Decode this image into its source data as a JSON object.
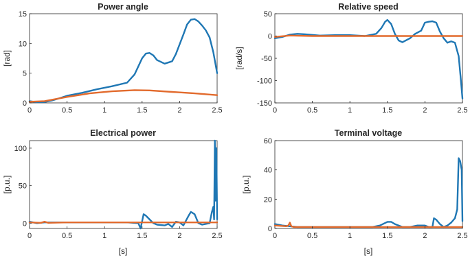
{
  "colors": {
    "series1": "#1f77b4",
    "series2": "#e26a2c",
    "axis": "#262626"
  },
  "chart_data": [
    {
      "type": "line",
      "title": "Power angle",
      "xlabel": "",
      "ylabel": "[rad]",
      "xlim": [
        0,
        2.5
      ],
      "ylim": [
        0,
        15
      ],
      "xticks": [
        0,
        0.5,
        1,
        1.5,
        2,
        2.5
      ],
      "xtick_labels": [
        "0",
        "0.5",
        "1",
        "1.5",
        "2",
        "2.5"
      ],
      "yticks": [
        0,
        5,
        10,
        15
      ],
      "ytick_labels": [
        "0",
        "5",
        "10",
        "15"
      ],
      "grid": false,
      "series": [
        {
          "color": "#1f77b4",
          "x": [
            0,
            0.1,
            0.2,
            0.3,
            0.4,
            0.5,
            0.7,
            0.9,
            1.1,
            1.3,
            1.4,
            1.5,
            1.55,
            1.6,
            1.65,
            1.7,
            1.8,
            1.9,
            1.95,
            2.05,
            2.1,
            2.15,
            2.2,
            2.25,
            2.3,
            2.35,
            2.4,
            2.45,
            2.5
          ],
          "y": [
            0.3,
            0.1,
            0.15,
            0.4,
            0.8,
            1.2,
            1.7,
            2.3,
            2.8,
            3.4,
            4.8,
            7.5,
            8.3,
            8.4,
            8.0,
            7.2,
            6.6,
            7.0,
            8.2,
            11.5,
            13.2,
            14.0,
            14.1,
            13.7,
            13.0,
            12.2,
            11.0,
            8.5,
            5.0
          ]
        },
        {
          "color": "#e26a2c",
          "x": [
            0,
            0.2,
            0.5,
            0.8,
            1.1,
            1.4,
            1.6,
            1.9,
            2.2,
            2.5
          ],
          "y": [
            0.2,
            0.3,
            1.0,
            1.6,
            1.95,
            2.15,
            2.1,
            1.85,
            1.6,
            1.3
          ]
        }
      ]
    },
    {
      "type": "line",
      "title": "Relative speed",
      "xlabel": "",
      "ylabel": "[rad/s]",
      "xlim": [
        0,
        2.5
      ],
      "ylim": [
        -150,
        50
      ],
      "xticks": [
        0,
        0.5,
        1,
        1.5,
        2,
        2.5
      ],
      "xtick_labels": [
        "0",
        "0.5",
        "1",
        "1.5",
        "2",
        "2.5"
      ],
      "yticks": [
        -150,
        -100,
        -50,
        0,
        50
      ],
      "ytick_labels": [
        "-150",
        "-100",
        "-50",
        "0",
        "50"
      ],
      "grid": false,
      "series": [
        {
          "color": "#1f77b4",
          "x": [
            0,
            0.1,
            0.2,
            0.3,
            0.4,
            0.6,
            0.8,
            1.0,
            1.2,
            1.35,
            1.42,
            1.47,
            1.5,
            1.55,
            1.6,
            1.65,
            1.7,
            1.8,
            1.87,
            1.95,
            2.0,
            2.05,
            2.1,
            2.15,
            2.2,
            2.25,
            2.3,
            2.35,
            2.4,
            2.45,
            2.48,
            2.5
          ],
          "y": [
            -5,
            -2,
            3,
            5,
            4,
            1,
            2,
            2,
            0,
            5,
            18,
            32,
            36,
            27,
            5,
            -10,
            -14,
            -5,
            5,
            12,
            30,
            32,
            33,
            30,
            10,
            -5,
            -15,
            -12,
            -15,
            -45,
            -100,
            -140
          ]
        },
        {
          "color": "#e26a2c",
          "x": [
            0,
            0.2,
            0.5,
            1.0,
            1.5,
            2.0,
            2.5
          ],
          "y": [
            -2,
            1,
            0,
            0,
            0,
            0,
            0
          ]
        }
      ]
    },
    {
      "type": "line",
      "title": "Electrical power",
      "xlabel": "[s]",
      "ylabel": "[p.u.]",
      "xlim": [
        0,
        2.5
      ],
      "ylim": [
        -7,
        110
      ],
      "xticks": [
        0,
        0.5,
        1,
        1.5,
        2,
        2.5
      ],
      "xtick_labels": [
        "0",
        "0.5",
        "1",
        "1.5",
        "2",
        "2.5"
      ],
      "yticks": [
        0,
        50,
        100
      ],
      "ytick_labels": [
        "0",
        "50",
        "100"
      ],
      "grid": false,
      "series": [
        {
          "color": "#1f77b4",
          "x": [
            0,
            0.1,
            0.2,
            0.5,
            1.0,
            1.3,
            1.45,
            1.48,
            1.52,
            1.55,
            1.6,
            1.65,
            1.7,
            1.8,
            1.85,
            1.9,
            1.95,
            2.0,
            2.05,
            2.12,
            2.15,
            2.2,
            2.25,
            2.3,
            2.4,
            2.43,
            2.45,
            2.46,
            2.47,
            2.48,
            2.49,
            2.5
          ],
          "y": [
            2,
            0,
            1,
            1,
            1,
            1,
            0,
            -7,
            12,
            10,
            5,
            0,
            -2,
            -3,
            -1,
            -5,
            2,
            1,
            -3,
            10,
            15,
            12,
            0,
            -2,
            0,
            15,
            22,
            5,
            110,
            30,
            100,
            5
          ]
        },
        {
          "color": "#e26a2c",
          "x": [
            0,
            0.15,
            0.2,
            0.25,
            0.5,
            1.0,
            1.5,
            2.0,
            2.5
          ],
          "y": [
            1,
            0.5,
            2,
            0.5,
            1,
            1,
            1,
            1,
            1
          ]
        }
      ]
    },
    {
      "type": "line",
      "title": "Terminal voltage",
      "xlabel": "[s]",
      "ylabel": "[p.u.]",
      "xlim": [
        0,
        2.5
      ],
      "ylim": [
        0,
        60
      ],
      "xticks": [
        0,
        0.5,
        1,
        1.5,
        2,
        2.5
      ],
      "xtick_labels": [
        "0",
        "0.5",
        "1",
        "1.5",
        "2",
        "2.5"
      ],
      "yticks": [
        0,
        20,
        40,
        60
      ],
      "ytick_labels": [
        "0",
        "20",
        "40",
        "60"
      ],
      "grid": false,
      "series": [
        {
          "color": "#1f77b4",
          "x": [
            0,
            0.1,
            0.2,
            0.3,
            0.5,
            0.8,
            1.0,
            1.3,
            1.4,
            1.5,
            1.55,
            1.6,
            1.7,
            1.8,
            1.9,
            2.0,
            2.05,
            2.1,
            2.12,
            2.15,
            2.2,
            2.25,
            2.3,
            2.35,
            2.4,
            2.43,
            2.45,
            2.47,
            2.49,
            2.5
          ],
          "y": [
            3,
            2,
            1.5,
            1,
            1,
            1,
            1,
            1,
            2,
            4.5,
            4.5,
            3,
            1,
            1,
            2,
            2,
            1,
            1,
            7,
            6,
            3,
            1,
            2,
            4,
            7,
            13,
            48,
            46,
            40,
            5
          ]
        },
        {
          "color": "#e26a2c",
          "x": [
            0,
            0.15,
            0.18,
            0.2,
            0.22,
            0.25,
            0.5,
            1.0,
            1.5,
            2.0,
            2.5
          ],
          "y": [
            2,
            1.5,
            2,
            4,
            1.5,
            1,
            1,
            1,
            1,
            1,
            1
          ]
        }
      ]
    }
  ]
}
